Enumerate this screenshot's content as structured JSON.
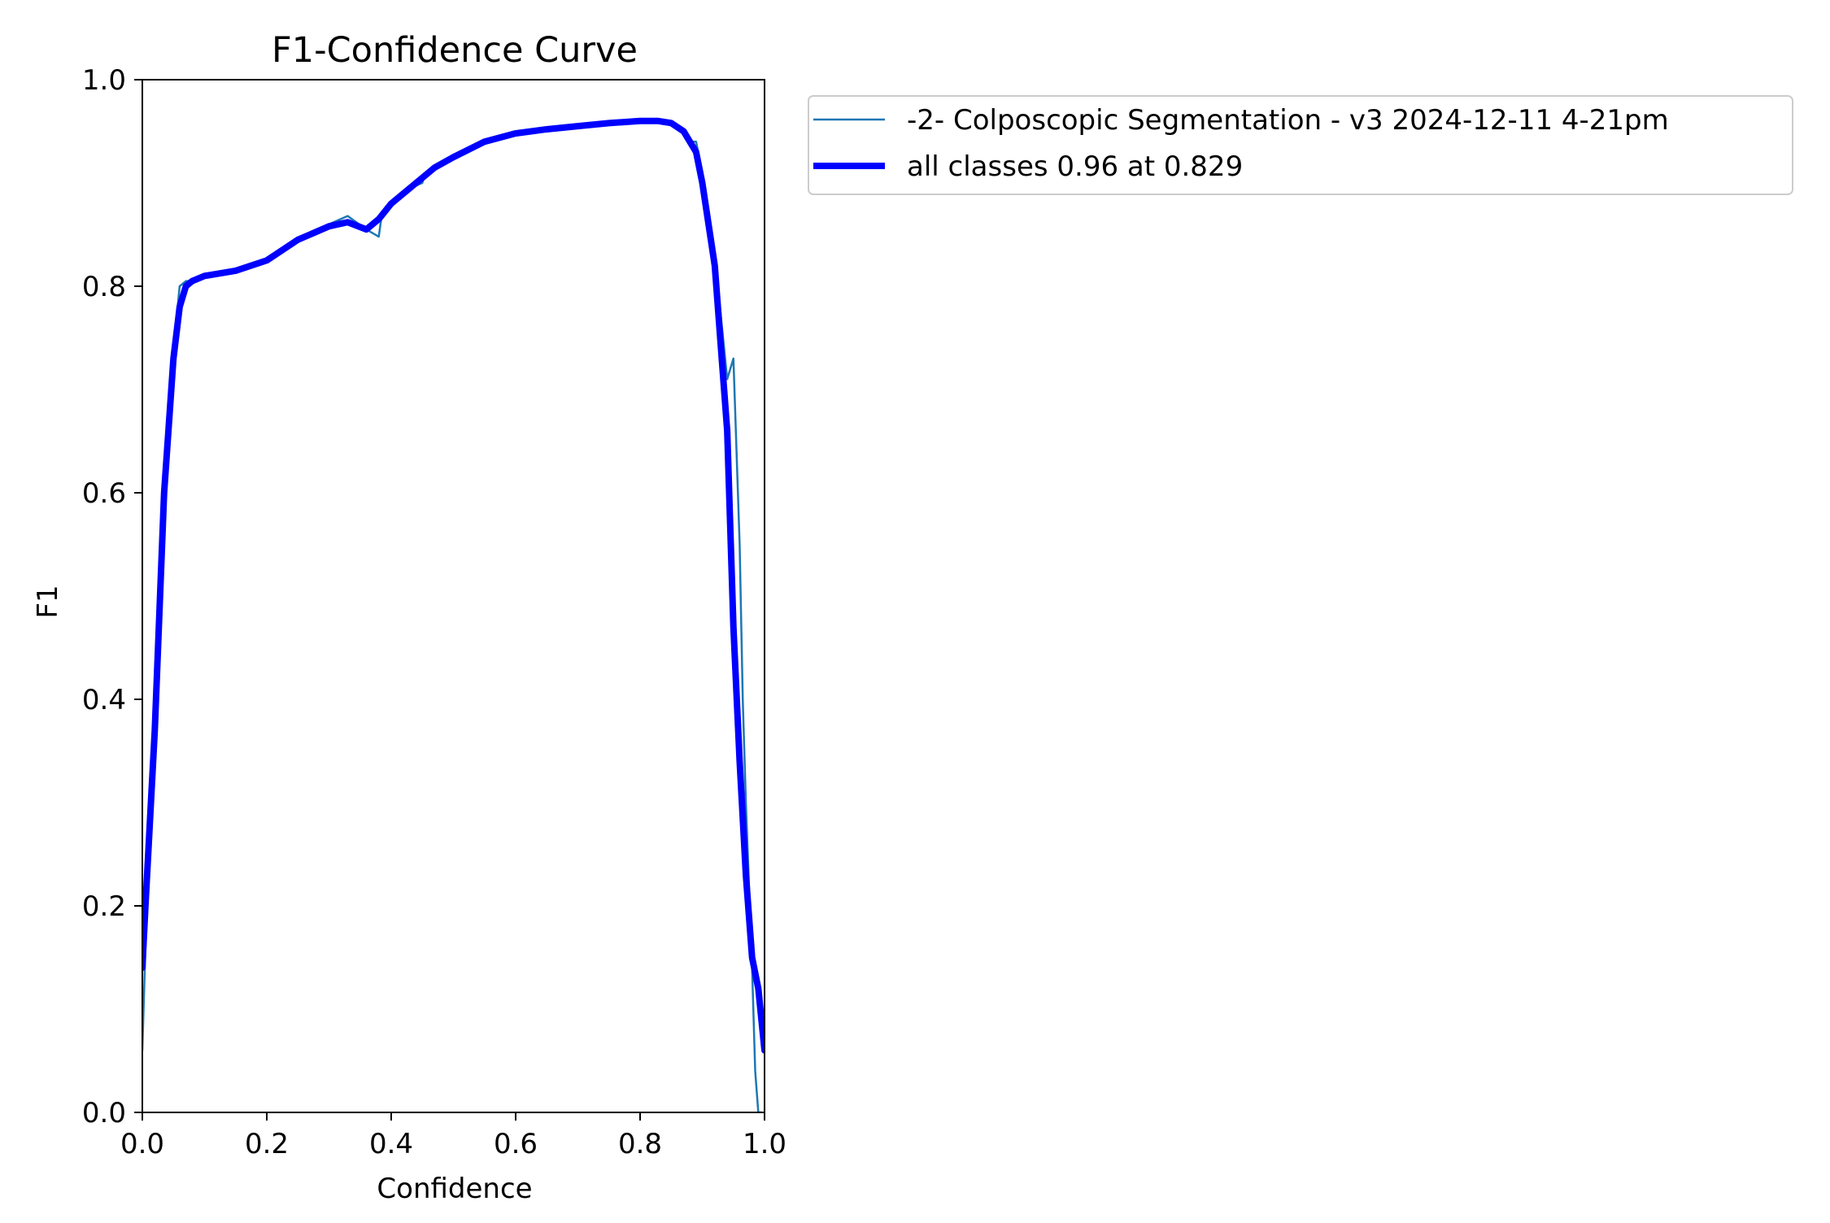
{
  "chart_data": {
    "type": "line",
    "title": "F1-Confidence Curve",
    "xlabel": "Confidence",
    "ylabel": "F1",
    "xlim": [
      0.0,
      1.0
    ],
    "ylim": [
      0.0,
      1.0
    ],
    "xticks": [
      "0.0",
      "0.2",
      "0.4",
      "0.6",
      "0.8",
      "1.0"
    ],
    "yticks": [
      "0.0",
      "0.2",
      "0.4",
      "0.6",
      "0.8",
      "1.0"
    ],
    "grid": false,
    "legend_position": "outside-top-right",
    "series": [
      {
        "name": "-2- Colposcopic Segmentation - v3 2024-12-11 4-21pm",
        "color": "#1f77b4",
        "style": "thin",
        "x": [
          0.0,
          0.005,
          0.02,
          0.035,
          0.05,
          0.06,
          0.07,
          0.08,
          0.1,
          0.15,
          0.2,
          0.25,
          0.3,
          0.33,
          0.36,
          0.38,
          0.385,
          0.395,
          0.41,
          0.43,
          0.45,
          0.455,
          0.47,
          0.5,
          0.55,
          0.6,
          0.65,
          0.7,
          0.75,
          0.8,
          0.83,
          0.86,
          0.88,
          0.89,
          0.9,
          0.92,
          0.94,
          0.95,
          0.96,
          0.965,
          0.97,
          0.98,
          0.985,
          0.99,
          0.995
        ],
        "y": [
          0.06,
          0.16,
          0.35,
          0.6,
          0.74,
          0.8,
          0.805,
          0.805,
          0.81,
          0.815,
          0.825,
          0.845,
          0.86,
          0.868,
          0.855,
          0.848,
          0.87,
          0.878,
          0.885,
          0.895,
          0.9,
          0.91,
          0.915,
          0.925,
          0.94,
          0.948,
          0.952,
          0.955,
          0.958,
          0.96,
          0.96,
          0.955,
          0.94,
          0.94,
          0.91,
          0.83,
          0.71,
          0.73,
          0.55,
          0.4,
          0.3,
          0.14,
          0.04,
          0.0,
          0.0
        ]
      },
      {
        "name": "all classes 0.96 at 0.829",
        "color": "#0000ff",
        "style": "thick",
        "x": [
          0.0,
          0.005,
          0.02,
          0.035,
          0.05,
          0.06,
          0.07,
          0.08,
          0.1,
          0.15,
          0.2,
          0.25,
          0.3,
          0.33,
          0.36,
          0.38,
          0.4,
          0.42,
          0.45,
          0.47,
          0.5,
          0.55,
          0.6,
          0.65,
          0.7,
          0.75,
          0.8,
          0.829,
          0.85,
          0.87,
          0.89,
          0.9,
          0.92,
          0.94,
          0.95,
          0.96,
          0.97,
          0.98,
          0.99,
          0.995,
          1.0
        ],
        "y": [
          0.14,
          0.2,
          0.37,
          0.6,
          0.73,
          0.78,
          0.8,
          0.805,
          0.81,
          0.815,
          0.825,
          0.845,
          0.858,
          0.862,
          0.855,
          0.865,
          0.88,
          0.89,
          0.905,
          0.915,
          0.925,
          0.94,
          0.948,
          0.952,
          0.955,
          0.958,
          0.96,
          0.96,
          0.958,
          0.95,
          0.93,
          0.9,
          0.82,
          0.66,
          0.47,
          0.34,
          0.23,
          0.15,
          0.12,
          0.09,
          0.06
        ]
      }
    ]
  }
}
